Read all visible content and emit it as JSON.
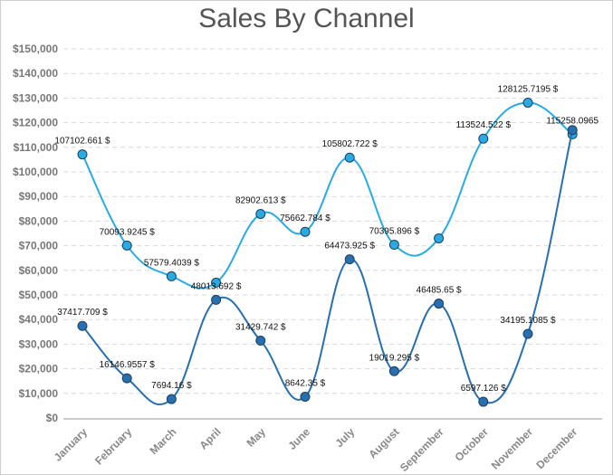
{
  "chart_data": {
    "type": "line",
    "title": "Sales By Channel",
    "categories": [
      "January",
      "February",
      "March",
      "April",
      "May",
      "June",
      "July",
      "August",
      "September",
      "October",
      "November",
      "December"
    ],
    "ylim": [
      0,
      150000
    ],
    "yticks": [
      "$0",
      "$10,000",
      "$20,000",
      "$30,000",
      "$40,000",
      "$50,000",
      "$60,000",
      "$70,000",
      "$80,000",
      "$90,000",
      "$100,000",
      "$110,000",
      "$120,000",
      "$130,000",
      "$140,000",
      "$150,000"
    ],
    "grid": true,
    "curve": "smooth",
    "series": [
      {
        "color": "#29abe2",
        "values": [
          107102.661,
          70093.9245,
          57579.4039,
          55000,
          82902.613,
          75662.784,
          105802.722,
          70395.896,
          73000,
          113524.522,
          128125.7195,
          115258.0965
        ],
        "labels": [
          "107102.661 $",
          "70093.9245 $",
          "57579.4039 $",
          "",
          "82902.613 $",
          "75662.784 $",
          "105802.722 $",
          "70395.896 $",
          "",
          "113524.522 $",
          "128125.7195 $",
          "115258.0965"
        ]
      },
      {
        "color": "#2a6fad",
        "values": [
          37417.709,
          16146.9557,
          7694.16,
          48013.692,
          31429.742,
          8642.35,
          64473.925,
          19019.295,
          46485.65,
          6597.126,
          34195.1085,
          117000
        ],
        "labels": [
          "37417.709 $",
          "16146.9557 $",
          "7694.16 $",
          "48013.692 $",
          "31429.742 $",
          "8642.35 $",
          "64473.925 $",
          "19019.295 $",
          "46485.65 $",
          "6597.126 $",
          "34195.1085 $",
          ""
        ]
      }
    ]
  }
}
